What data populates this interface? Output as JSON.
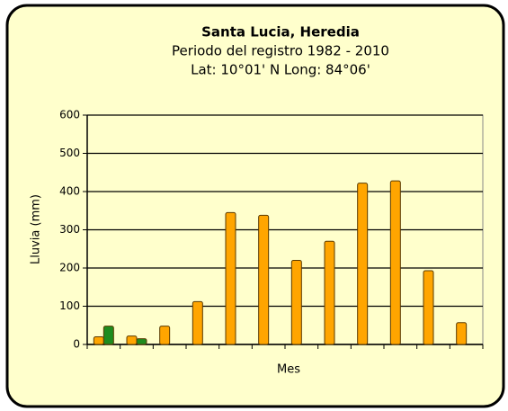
{
  "chart_data": {
    "type": "bar",
    "title": "Santa Lucia, Heredia",
    "subtitle": [
      "Periodo del registro 1982 - 2010",
      "Lat: 10°01' N Long: 84°06'"
    ],
    "x_label": "Mes",
    "y_label": "Lluvia (mm)",
    "categories": [
      null,
      null,
      null,
      null,
      null,
      null,
      null,
      null,
      null,
      null,
      null,
      null
    ],
    "series": [
      {
        "color": "#ffa500",
        "values": [
          20,
          22,
          48,
          112,
          345,
          338,
          220,
          270,
          422,
          428,
          193,
          57
        ]
      },
      {
        "color": "#1e8c1e",
        "values": [
          48,
          15,
          null,
          null,
          null,
          null,
          null,
          null,
          null,
          null,
          null,
          null
        ]
      }
    ],
    "ylim": [
      0,
      600
    ],
    "yticks": [
      0,
      100,
      200,
      300,
      400,
      500,
      600
    ],
    "grid": true
  }
}
